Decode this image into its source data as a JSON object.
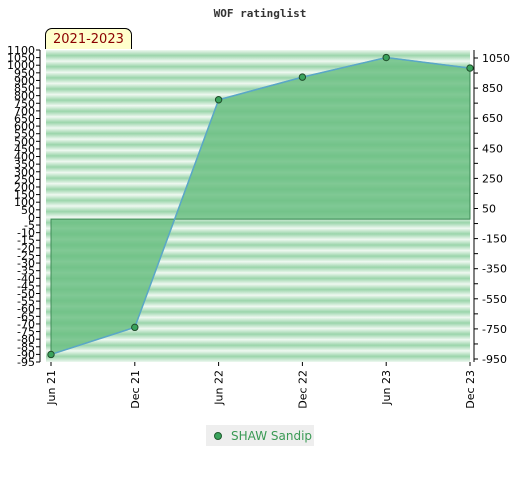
{
  "chart_data": {
    "type": "area",
    "title": "WOF ratinglist",
    "subtitle": "2021-2023",
    "x": [
      "Jun 21",
      "Dec 21",
      "Jun 22",
      "Dec 22",
      "Jun 23",
      "Dec 23"
    ],
    "series": [
      {
        "name": "SHAW Sandip",
        "values": [
          -910,
          -730,
          780,
          930,
          1060,
          990
        ]
      }
    ],
    "ylim": [
      -960,
      1110
    ],
    "y_ticks_left": [
      1100,
      1050,
      1000,
      950,
      900,
      850,
      800,
      750,
      700,
      650,
      600,
      550,
      500,
      450,
      400,
      350,
      300,
      250,
      200,
      150,
      100,
      50,
      0,
      -5,
      -10,
      -15,
      -20,
      -25,
      -30,
      -35,
      -40,
      -45,
      -50,
      -55,
      -60,
      -65,
      -70,
      -75,
      -80,
      -85,
      -90,
      -95
    ],
    "y_ticks_right": [
      1050,
      850,
      650,
      450,
      250,
      50,
      -150,
      -350,
      -550,
      -750,
      -950
    ],
    "grid": true,
    "legend_position": "bottom",
    "colors": {
      "fill": "#6cbf84",
      "line": "#5aa7c8",
      "marker": "#3aa35c",
      "band_dark": "#9bd5ab",
      "band_light": "#eef8f0",
      "badge_text": "#8b0000"
    }
  }
}
